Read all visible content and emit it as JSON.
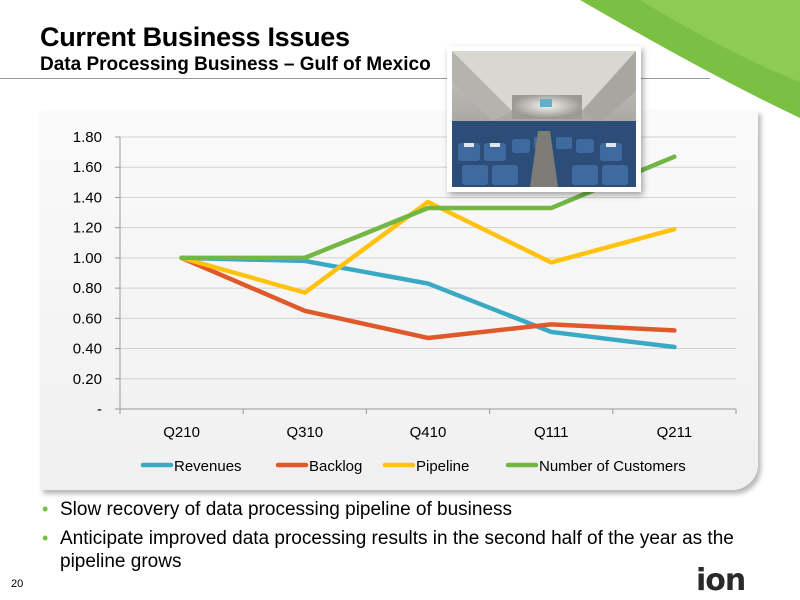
{
  "slide": {
    "title": "Current Business Issues",
    "subtitle": "Data Processing Business – Gulf of Mexico",
    "page_number": "20",
    "logo_text": "ion",
    "bullets": [
      "Slow recovery of data processing pipeline of business",
      "Anticipate improved data processing results in the second half of the year as the pipeline grows"
    ]
  },
  "colors": {
    "accent_green": "#7ac143",
    "revenues": "#3aa9c4",
    "backlog": "#e0592a",
    "pipeline": "#ffc20e",
    "customers": "#72b644"
  },
  "photo": {
    "icon": "airplane-cabin-photo"
  },
  "chart_data": {
    "type": "line",
    "categories": [
      "Q210",
      "Q310",
      "Q410",
      "Q111",
      "Q211"
    ],
    "ylim": [
      0,
      1.8
    ],
    "y_ticks": [
      "-",
      "0.20",
      "0.40",
      "0.60",
      "0.80",
      "1.00",
      "1.20",
      "1.40",
      "1.60",
      "1.80"
    ],
    "grid": true,
    "legend_position": "bottom",
    "series": [
      {
        "name": "Revenues",
        "color": "#3aa9c4",
        "values": [
          1.0,
          0.98,
          0.83,
          0.51,
          0.41
        ]
      },
      {
        "name": "Backlog",
        "color": "#e0592a",
        "values": [
          1.0,
          0.65,
          0.47,
          0.56,
          0.52
        ]
      },
      {
        "name": "Pipeline",
        "color": "#ffc20e",
        "values": [
          1.0,
          0.77,
          1.37,
          0.97,
          1.19
        ]
      },
      {
        "name": "Number of Customers",
        "color": "#72b644",
        "values": [
          1.0,
          1.0,
          1.33,
          1.33,
          1.67
        ]
      }
    ]
  }
}
